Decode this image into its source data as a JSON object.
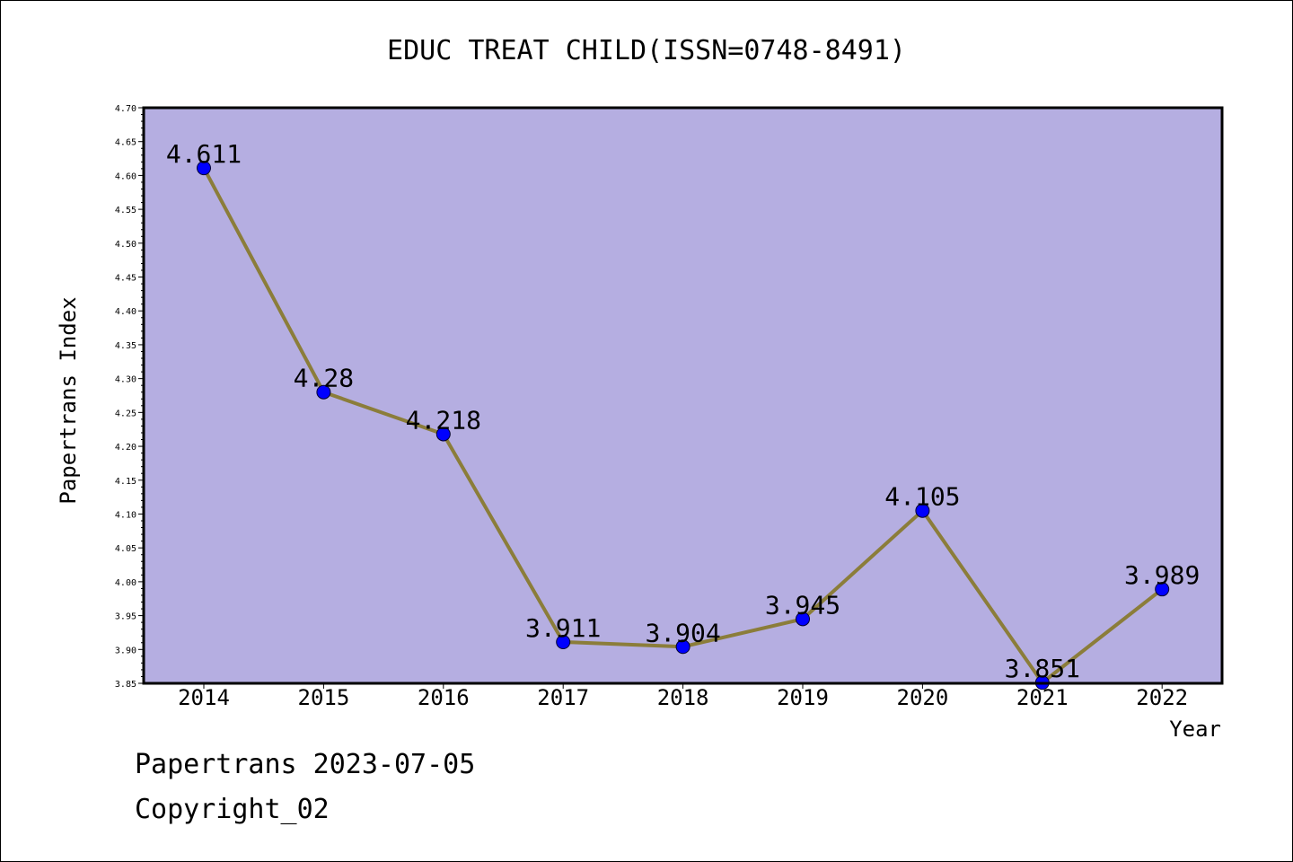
{
  "chart_data": {
    "type": "line",
    "title": "EDUC TREAT CHILD(ISSN=0748-8491)",
    "xlabel": "Year",
    "ylabel": "Papertrans Index",
    "categories": [
      "2014",
      "2015",
      "2016",
      "2017",
      "2018",
      "2019",
      "2020",
      "2021",
      "2022"
    ],
    "values": [
      4.611,
      4.28,
      4.218,
      3.911,
      3.904,
      3.945,
      4.105,
      3.851,
      3.989
    ],
    "data_labels": [
      "4.611",
      "4.28",
      "4.218",
      "3.911",
      "3.904",
      "3.945",
      "4.105",
      "3.851",
      "3.989"
    ],
    "ylim": [
      3.85,
      4.7
    ],
    "yticks": [
      "3.85",
      "3.90",
      "3.95",
      "4.00",
      "4.05",
      "4.10",
      "4.15",
      "4.20",
      "4.25",
      "4.30",
      "4.35",
      "4.40",
      "4.45",
      "4.50",
      "4.55",
      "4.60",
      "4.65",
      "4.70"
    ],
    "grid": false,
    "legend": "none",
    "colors": {
      "plot_background": "#b5aee1",
      "line": "#8b7d3a",
      "marker": "#0000ff"
    }
  },
  "footer": {
    "date_text": "Papertrans 2023-07-05",
    "copyright_text": "Copyright_02"
  }
}
